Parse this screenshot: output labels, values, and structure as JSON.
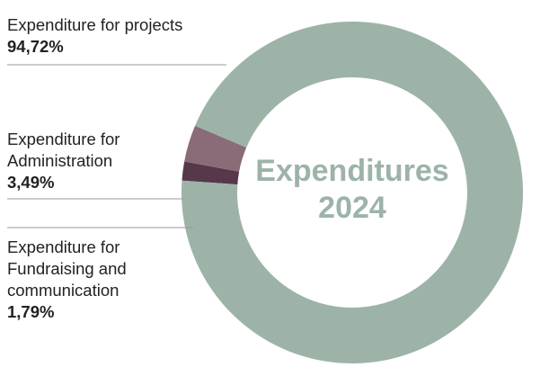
{
  "chart_data": {
    "type": "pie",
    "donut": true,
    "title": "Expenditures 2024",
    "categories": [
      "Expenditure for projects",
      "Expenditure for Administration",
      "Expenditure for Fundraising and communication"
    ],
    "values": [
      94.72,
      3.49,
      1.79
    ],
    "value_labels": [
      "94,72%",
      "3,49%",
      "1,79%"
    ],
    "colors": [
      "#9db3a8",
      "#8a6b78",
      "#56384a"
    ]
  }
}
